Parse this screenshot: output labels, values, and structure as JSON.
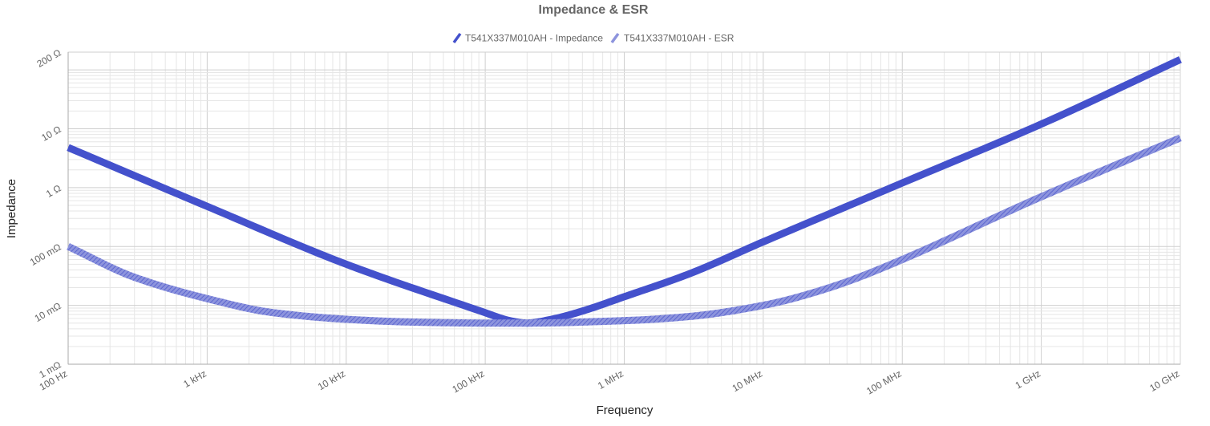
{
  "chart_data": {
    "type": "line",
    "title": "Impedance & ESR",
    "xlabel": "Frequency",
    "ylabel": "Impedance",
    "x_scale": "log",
    "y_scale": "log",
    "xlim": [
      100,
      10000000000
    ],
    "ylim": [
      0.001,
      200
    ],
    "grid": true,
    "legend_position": "top-center",
    "x_ticks": [
      {
        "value": 100,
        "label": "100 Hz"
      },
      {
        "value": 1000,
        "label": "1 kHz"
      },
      {
        "value": 10000,
        "label": "10 kHz"
      },
      {
        "value": 100000,
        "label": "100 kHz"
      },
      {
        "value": 1000000,
        "label": "1 MHz"
      },
      {
        "value": 10000000,
        "label": "10 MHz"
      },
      {
        "value": 100000000,
        "label": "100 MHz"
      },
      {
        "value": 1000000000,
        "label": "1 GHz"
      },
      {
        "value": 10000000000,
        "label": "10 GHz"
      }
    ],
    "y_ticks": [
      {
        "value": 0.001,
        "label": "1 mΩ"
      },
      {
        "value": 0.01,
        "label": "10 mΩ"
      },
      {
        "value": 0.1,
        "label": "100 mΩ"
      },
      {
        "value": 1,
        "label": "1 Ω"
      },
      {
        "value": 10,
        "label": "10 Ω"
      },
      {
        "value": 200,
        "label": "200 Ω"
      }
    ],
    "series": [
      {
        "name": "T541X337M010AH - Impedance",
        "color": "#4451cc",
        "style": "solid",
        "x": [
          100,
          1000,
          10000,
          100000,
          150000,
          200000,
          300000,
          500000,
          1000000,
          3000000,
          10000000,
          100000000,
          1000000000,
          10000000000
        ],
        "y": [
          4.8,
          0.48,
          0.05,
          0.0075,
          0.0055,
          0.005,
          0.0058,
          0.008,
          0.014,
          0.035,
          0.12,
          1.2,
          12,
          150
        ]
      },
      {
        "name": "T541X337M010AH - ESR",
        "color": "#7b83d6",
        "style": "hatched",
        "x": [
          100,
          300,
          1000,
          3000,
          10000,
          30000,
          100000,
          200000,
          1000000,
          3000000,
          10000000,
          30000000,
          100000000,
          1000000000,
          10000000000
        ],
        "y": [
          0.1,
          0.03,
          0.013,
          0.0075,
          0.0058,
          0.0052,
          0.005,
          0.005,
          0.0055,
          0.0065,
          0.01,
          0.02,
          0.06,
          0.7,
          7
        ]
      }
    ]
  }
}
